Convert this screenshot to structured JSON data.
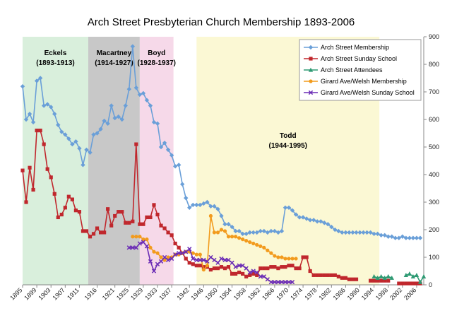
{
  "chart_data": {
    "type": "line",
    "title": "Arch Street Presbyterian Church Membership 1893-2006",
    "xlabel": "",
    "ylabel": "",
    "xlim": [
      1895,
      2008
    ],
    "ylim": [
      0,
      900
    ],
    "y_axis_side": "right",
    "x_ticks": [
      1895,
      1899,
      1903,
      1907,
      1911,
      1916,
      1921,
      1925,
      1929,
      1933,
      1937,
      1942,
      1946,
      1950,
      1954,
      1958,
      1962,
      1966,
      1970,
      1974,
      1978,
      1982,
      1986,
      1990,
      1994,
      1998,
      2002,
      2006
    ],
    "x_tick_labels": [
      "1895",
      "1899",
      "1903",
      "1907",
      "1911",
      "1916",
      "1921",
      "1925",
      "1929",
      "1933",
      "1937",
      "1942",
      "1946",
      "1950",
      "1954",
      "1958",
      "1962",
      "1966",
      "1970",
      "1974",
      "1978",
      "1982",
      "1986",
      "1990",
      "1994",
      "1998",
      "2002",
      "2006"
    ],
    "y_ticks": [
      0,
      100,
      200,
      300,
      400,
      500,
      600,
      700,
      800,
      900
    ],
    "y_tick_labels": [
      "0",
      "100",
      "200",
      "300",
      "400",
      "500",
      "600",
      "700",
      "800",
      "900"
    ],
    "grid": false,
    "legend_position": "top-right",
    "eras": [
      {
        "name": "Eckels",
        "years": "(1893-1913)",
        "start": 1895,
        "end": 1913.5,
        "color": "#d9efdc"
      },
      {
        "name": "Macartney",
        "years": "(1914-1927)",
        "start": 1913.5,
        "end": 1928.0,
        "color": "#c8c8c8"
      },
      {
        "name": "Boyd",
        "years": "(1928-1937)",
        "start": 1928.0,
        "end": 1937.5,
        "color": "#f6d9e9"
      },
      {
        "name": "Todd",
        "years": "(1944-1995)",
        "start": 1944,
        "end": 1995.5,
        "color": "#fbf8d4"
      }
    ],
    "series": [
      {
        "name": "Arch Street Membership",
        "color": "#6a9fd8",
        "marker": "diamond",
        "x": [
          1895,
          1896,
          1897,
          1898,
          1899,
          1900,
          1901,
          1902,
          1903,
          1904,
          1905,
          1906,
          1907,
          1908,
          1909,
          1910,
          1911,
          1912,
          1913,
          1914,
          1915,
          1916,
          1917,
          1918,
          1919,
          1920,
          1921,
          1922,
          1923,
          1924,
          1925,
          1926,
          1927,
          1928,
          1929,
          1930,
          1931,
          1932,
          1933,
          1934,
          1935,
          1936,
          1937,
          1938,
          1939,
          1940,
          1941,
          1942,
          1943,
          1944,
          1945,
          1946,
          1947,
          1948,
          1949,
          1950,
          1951,
          1952,
          1953,
          1954,
          1955,
          1956,
          1957,
          1958,
          1959,
          1960,
          1961,
          1962,
          1963,
          1964,
          1965,
          1966,
          1967,
          1968,
          1969,
          1970,
          1971,
          1972,
          1973,
          1974,
          1975,
          1976,
          1977,
          1978,
          1979,
          1980,
          1981,
          1982,
          1983,
          1984,
          1985,
          1986,
          1987,
          1988,
          1989,
          1990,
          1991,
          1992,
          1993,
          1994,
          1995,
          1996,
          1997,
          1998,
          1999,
          2000,
          2001,
          2002,
          2003,
          2004,
          2005,
          2006,
          2007
        ],
        "y": [
          720,
          600,
          620,
          590,
          740,
          750,
          650,
          655,
          645,
          620,
          580,
          555,
          545,
          530,
          510,
          520,
          495,
          435,
          490,
          480,
          545,
          550,
          565,
          595,
          585,
          650,
          605,
          610,
          600,
          650,
          710,
          865,
          715,
          690,
          695,
          670,
          650,
          590,
          585,
          500,
          515,
          490,
          470,
          430,
          435,
          365,
          315,
          280,
          290,
          290,
          290,
          295,
          300,
          285,
          285,
          275,
          250,
          220,
          220,
          210,
          195,
          195,
          185,
          185,
          190,
          190,
          190,
          195,
          195,
          190,
          195,
          195,
          190,
          195,
          280,
          280,
          270,
          255,
          245,
          245,
          240,
          235,
          235,
          230,
          230,
          225,
          220,
          210,
          200,
          195,
          190,
          190,
          190,
          190,
          190,
          190,
          190,
          190,
          190,
          185,
          185,
          180,
          180,
          175,
          175,
          170,
          170,
          175,
          170,
          170,
          170,
          170,
          170
        ]
      },
      {
        "name": "Arch Street Sunday School",
        "color": "#c0272d",
        "marker": "square",
        "x": [
          1895,
          1896,
          1897,
          1898,
          1899,
          1900,
          1901,
          1902,
          1903,
          1904,
          1905,
          1906,
          1907,
          1908,
          1909,
          1910,
          1911,
          1912,
          1913,
          1914,
          1915,
          1916,
          1917,
          1918,
          1919,
          1920,
          1921,
          1922,
          1923,
          1924,
          1925,
          1926,
          1927,
          1928,
          1929,
          1930,
          1931,
          1932,
          1933,
          1934,
          1935,
          1936,
          1937,
          1938,
          1939,
          1940,
          1941,
          1942,
          1943,
          1944,
          1945,
          1946,
          1947,
          1948,
          1949,
          1950,
          1951,
          1952,
          1953,
          1954,
          1955,
          1956,
          1957,
          1958,
          1959,
          1960,
          1961,
          1962,
          1963,
          1964,
          1965,
          1966,
          1967,
          1968,
          1969,
          1970,
          1971,
          1972,
          1973,
          1974,
          1975,
          1976,
          1977,
          1978,
          1979,
          1980,
          1981,
          1982,
          1983,
          1984,
          1985,
          1986,
          1987,
          1988,
          1989,
          null,
          1993,
          1994,
          1995,
          1996,
          1997,
          1998,
          null,
          2001,
          2002,
          2003,
          2004,
          2005,
          2006,
          2007
        ],
        "y": [
          415,
          300,
          425,
          345,
          560,
          560,
          510,
          420,
          390,
          330,
          245,
          255,
          280,
          320,
          310,
          270,
          265,
          195,
          195,
          175,
          185,
          205,
          190,
          190,
          275,
          215,
          250,
          265,
          265,
          225,
          225,
          230,
          510,
          220,
          220,
          245,
          245,
          290,
          255,
          215,
          205,
          190,
          180,
          150,
          135,
          115,
          95,
          80,
          75,
          70,
          70,
          65,
          65,
          55,
          60,
          60,
          65,
          60,
          65,
          40,
          40,
          45,
          40,
          30,
          35,
          40,
          35,
          60,
          60,
          60,
          65,
          65,
          60,
          65,
          65,
          70,
          70,
          60,
          60,
          100,
          100,
          50,
          35,
          35,
          35,
          35,
          35,
          35,
          35,
          30,
          25,
          25,
          20,
          20,
          20,
          null,
          15,
          15,
          15,
          15,
          15,
          15,
          null,
          5,
          5,
          5,
          5,
          5,
          5,
          5
        ]
      },
      {
        "name": "Arch Street Attendees",
        "color": "#2e9a73",
        "marker": "triangle",
        "x": [
          1994,
          1995,
          1996,
          1997,
          1998,
          1999,
          null,
          2003,
          2004,
          2005,
          2006,
          2007,
          2008
        ],
        "y": [
          30,
          25,
          30,
          25,
          30,
          25,
          null,
          35,
          40,
          30,
          35,
          10,
          30
        ]
      },
      {
        "name": "Girard Ave/Welsh Membership",
        "color": "#f29b1d",
        "marker": "circle",
        "x": [
          1926,
          1927,
          1928,
          1929,
          1930,
          1931,
          1932,
          1933,
          1934,
          1935,
          1936,
          1937,
          1938,
          1939,
          1940,
          1941,
          1942,
          1943,
          1944,
          1945,
          1946,
          1947,
          1948,
          1949,
          1950,
          1951,
          1952,
          1953,
          1954,
          1955,
          1956,
          1957,
          1958,
          1959,
          1960,
          1961,
          1962,
          1963,
          1964,
          1965,
          1966,
          1967,
          1968,
          1969,
          1970,
          1971,
          1972
        ],
        "y": [
          175,
          175,
          175,
          165,
          165,
          135,
          120,
          115,
          100,
          90,
          100,
          100,
          110,
          110,
          115,
          120,
          120,
          115,
          110,
          110,
          55,
          70,
          250,
          190,
          190,
          200,
          195,
          175,
          175,
          175,
          170,
          165,
          160,
          155,
          150,
          145,
          140,
          135,
          125,
          115,
          105,
          100,
          100,
          95,
          95,
          95,
          95
        ]
      },
      {
        "name": "Girard Ave/Welsh Sunday School",
        "color": "#6a2bb5",
        "marker": "x",
        "x": [
          1925,
          1926,
          1927,
          1928,
          1929,
          1930,
          1931,
          1932,
          1933,
          1934,
          1935,
          1936,
          1937,
          1938,
          1939,
          1940,
          1941,
          1942,
          1943,
          1944,
          1945,
          1946,
          1947,
          1948,
          1949,
          1950,
          1951,
          1952,
          1953,
          1954,
          1955,
          1956,
          1957,
          1958,
          1959,
          1960,
          1961,
          1962,
          1963,
          1964,
          1965,
          1966,
          1967,
          1968,
          1969,
          1970,
          1971
        ],
        "y": [
          135,
          135,
          135,
          150,
          155,
          140,
          85,
          50,
          75,
          85,
          100,
          90,
          95,
          110,
          115,
          115,
          120,
          130,
          95,
          90,
          90,
          90,
          85,
          100,
          90,
          80,
          95,
          90,
          90,
          80,
          65,
          70,
          70,
          60,
          45,
          50,
          45,
          30,
          30,
          20,
          10,
          10,
          10,
          10,
          10,
          10,
          10
        ]
      }
    ]
  }
}
